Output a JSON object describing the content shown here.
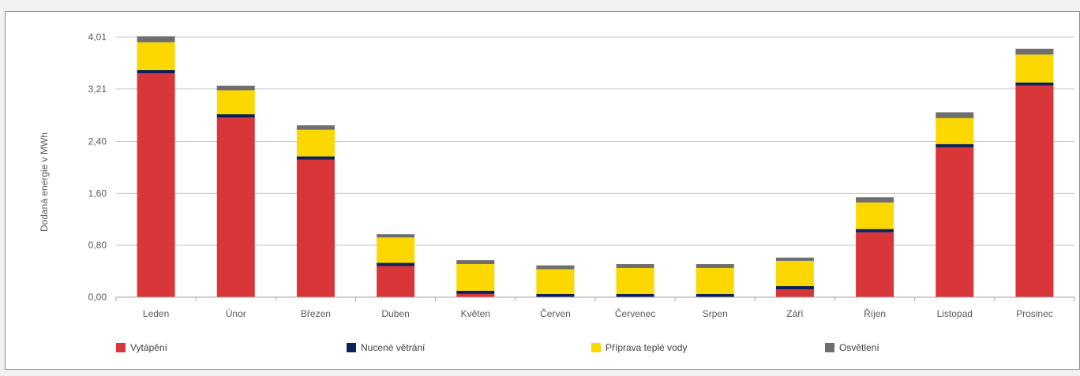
{
  "chart_data": {
    "type": "bar",
    "stacked": true,
    "title": "",
    "xlabel": "",
    "ylabel": "Dodaná energie v MWh",
    "ylim": [
      0,
      4.01
    ],
    "yticks": [
      "0,00",
      "0,80",
      "1,60",
      "2,40",
      "3,21",
      "4,01"
    ],
    "ytick_values": [
      0,
      0.8,
      1.6,
      2.4,
      3.21,
      4.01
    ],
    "grid": true,
    "legend_position": "bottom",
    "categories": [
      "Leden",
      "Únor",
      "Březen",
      "Duben",
      "Květen",
      "Červen",
      "Červenec",
      "Srpen",
      "Září",
      "Říjen",
      "Listopad",
      "Prosinec"
    ],
    "series": [
      {
        "name": "Vytápění",
        "color": "#d9363a",
        "values": [
          3.45,
          2.77,
          2.12,
          0.48,
          0.05,
          0.0,
          0.0,
          0.0,
          0.12,
          1.0,
          2.31,
          3.26
        ]
      },
      {
        "name": "Nucené větrání",
        "color": "#0c2159",
        "values": [
          0.05,
          0.05,
          0.05,
          0.05,
          0.05,
          0.05,
          0.05,
          0.05,
          0.05,
          0.05,
          0.05,
          0.05
        ]
      },
      {
        "name": "Příprava teplé vody",
        "color": "#fcd800",
        "values": [
          0.43,
          0.37,
          0.41,
          0.39,
          0.41,
          0.38,
          0.4,
          0.4,
          0.39,
          0.41,
          0.4,
          0.43
        ]
      },
      {
        "name": "Osvětlení",
        "color": "#6e6e6e",
        "values": [
          0.09,
          0.07,
          0.07,
          0.05,
          0.06,
          0.06,
          0.06,
          0.06,
          0.05,
          0.08,
          0.09,
          0.09
        ]
      }
    ]
  }
}
